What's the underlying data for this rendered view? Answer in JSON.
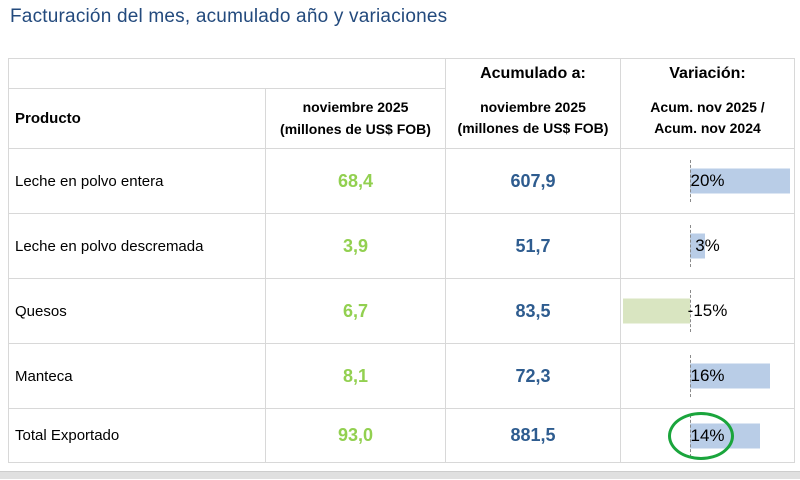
{
  "title": "Facturación del mes, acumulado año y variaciones",
  "colors": {
    "title_blue": "#234a7d",
    "value_green": "#92d050",
    "value_blue": "#2e5c8f",
    "bar_positive": "#b9cde7",
    "bar_negative": "#d9e5c1",
    "circle_green": "#1aa53c",
    "grid_gray": "#d8d8d8"
  },
  "table": {
    "header": {
      "producto": "Producto",
      "month_line1": "noviembre 2025",
      "month_line2": "(millones de US$ FOB)",
      "acumulado_title": "Acumulado a:",
      "acumulado_line1": "noviembre 2025",
      "acumulado_line2": "(millones de US$ FOB)",
      "variacion_title": "Variación:",
      "variacion_line1": "Acum. nov 2025 /",
      "variacion_line2": "Acum. nov 2024"
    },
    "rows": [
      {
        "producto": "Leche en polvo entera",
        "mes": "68,4",
        "acumulado": "607,9",
        "variacion": "20%",
        "variacion_value": 20,
        "highlighted": false
      },
      {
        "producto": "Leche en polvo descremada",
        "mes": "3,9",
        "acumulado": "51,7",
        "variacion": "3%",
        "variacion_value": 3,
        "highlighted": false
      },
      {
        "producto": "Quesos",
        "mes": "6,7",
        "acumulado": "83,5",
        "variacion": "-15%",
        "variacion_value": -15,
        "highlighted": false
      },
      {
        "producto": "Manteca",
        "mes": "8,1",
        "acumulado": "72,3",
        "variacion": "16%",
        "variacion_value": 16,
        "highlighted": false
      },
      {
        "producto": "Total Exportado",
        "mes": "93,0",
        "acumulado": "881,5",
        "variacion": "14%",
        "variacion_value": 14,
        "highlighted": true
      }
    ]
  },
  "chart_data": {
    "type": "table",
    "title": "Facturación del mes, acumulado año y variaciones",
    "columns": [
      "Producto",
      "noviembre 2025 (millones de US$ FOB)",
      "Acumulado a: noviembre 2025 (millones de US$ FOB)",
      "Variación: Acum. nov 2025 / Acum. nov 2024"
    ],
    "rows": [
      [
        "Leche en polvo entera",
        68.4,
        607.9,
        20
      ],
      [
        "Leche en polvo descremada",
        3.9,
        51.7,
        3
      ],
      [
        "Quesos",
        6.7,
        83.5,
        -15
      ],
      [
        "Manteca",
        8.1,
        72.3,
        16
      ],
      [
        "Total Exportado",
        93.0,
        881.5,
        14
      ]
    ],
    "variation_unit": "%",
    "databar": {
      "min": -15,
      "max": 20,
      "axis_frac": 0.4,
      "positive_color": "#b9cde7",
      "negative_color": "#d9e5c1"
    },
    "annotation": "green ellipse highlighting Total Exportado variation 14%"
  }
}
